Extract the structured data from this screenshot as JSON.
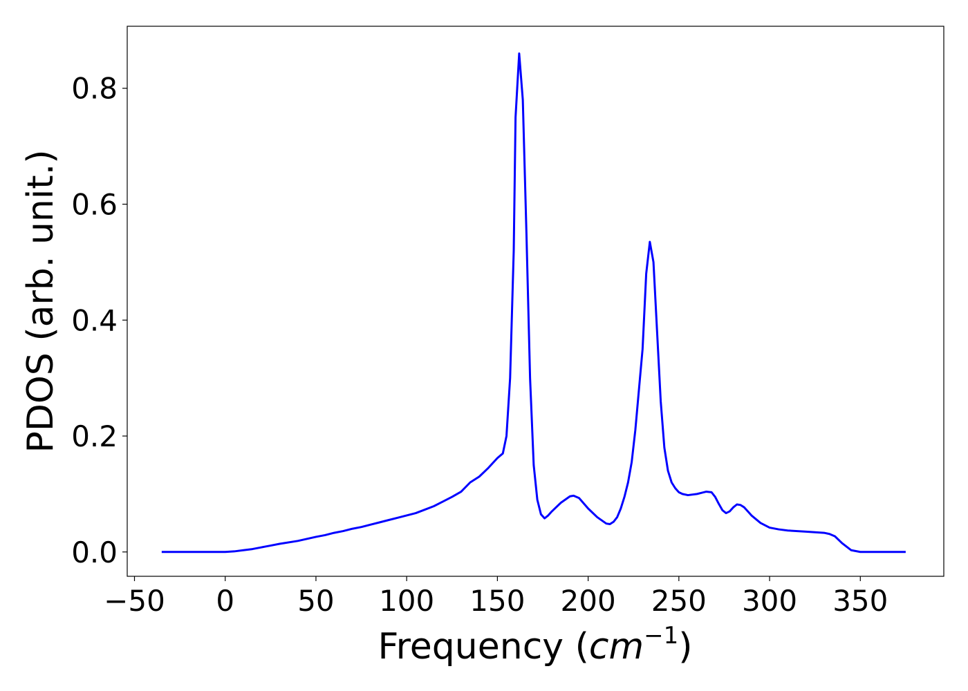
{
  "chart_data": {
    "type": "line",
    "xlabel": "Frequency (",
    "xlabel_unit_base": "cm",
    "xlabel_unit_exponent": "−1",
    "xlabel_close": ")",
    "ylabel": "PDOS (arb. unit.)",
    "xlim": [
      -54,
      396
    ],
    "ylim": [
      -0.042,
      0.907
    ],
    "x_ticks": [
      -50,
      0,
      50,
      100,
      150,
      200,
      250,
      300,
      350
    ],
    "x_tick_labels": [
      "−50",
      "0",
      "50",
      "100",
      "150",
      "200",
      "250",
      "300",
      "350"
    ],
    "y_ticks": [
      0.0,
      0.2,
      0.4,
      0.6,
      0.8
    ],
    "y_tick_labels": [
      "0.0",
      "0.2",
      "0.4",
      "0.6",
      "0.8"
    ],
    "grid": false,
    "legend": "none",
    "series": [
      {
        "color": "#0000ff",
        "x": [
          -35,
          -20,
          0,
          5,
          10,
          15,
          20,
          25,
          30,
          40,
          50,
          55,
          60,
          65,
          70,
          75,
          80,
          85,
          90,
          95,
          100,
          105,
          110,
          115,
          120,
          125,
          130,
          135,
          140,
          145,
          150,
          153,
          155,
          157,
          159,
          160,
          162,
          164,
          166,
          168,
          170,
          172,
          174,
          176,
          178,
          180,
          185,
          190,
          192,
          195,
          200,
          205,
          210,
          212,
          214,
          216,
          218,
          220,
          222,
          224,
          226,
          228,
          230,
          232,
          234,
          236,
          238,
          240,
          242,
          244,
          246,
          248,
          250,
          252,
          255,
          260,
          265,
          268,
          270,
          272,
          274,
          276,
          278,
          280,
          282,
          284,
          286,
          288,
          290,
          295,
          300,
          305,
          310,
          320,
          330,
          333,
          336,
          340,
          345,
          350,
          375
        ],
        "y": [
          0.0,
          0.0,
          0.0,
          0.001,
          0.003,
          0.005,
          0.008,
          0.011,
          0.014,
          0.019,
          0.026,
          0.029,
          0.033,
          0.036,
          0.04,
          0.043,
          0.047,
          0.051,
          0.055,
          0.059,
          0.063,
          0.067,
          0.073,
          0.079,
          0.087,
          0.095,
          0.104,
          0.12,
          0.13,
          0.145,
          0.162,
          0.17,
          0.2,
          0.3,
          0.52,
          0.75,
          0.86,
          0.78,
          0.55,
          0.3,
          0.15,
          0.09,
          0.065,
          0.058,
          0.063,
          0.07,
          0.085,
          0.096,
          0.097,
          0.093,
          0.075,
          0.06,
          0.049,
          0.048,
          0.052,
          0.06,
          0.075,
          0.095,
          0.12,
          0.155,
          0.21,
          0.28,
          0.35,
          0.48,
          0.535,
          0.5,
          0.38,
          0.26,
          0.18,
          0.14,
          0.12,
          0.11,
          0.103,
          0.1,
          0.098,
          0.1,
          0.104,
          0.103,
          0.095,
          0.083,
          0.072,
          0.067,
          0.07,
          0.077,
          0.082,
          0.081,
          0.077,
          0.07,
          0.063,
          0.05,
          0.042,
          0.039,
          0.037,
          0.035,
          0.033,
          0.031,
          0.027,
          0.015,
          0.003,
          0.0,
          0.0
        ]
      }
    ]
  }
}
